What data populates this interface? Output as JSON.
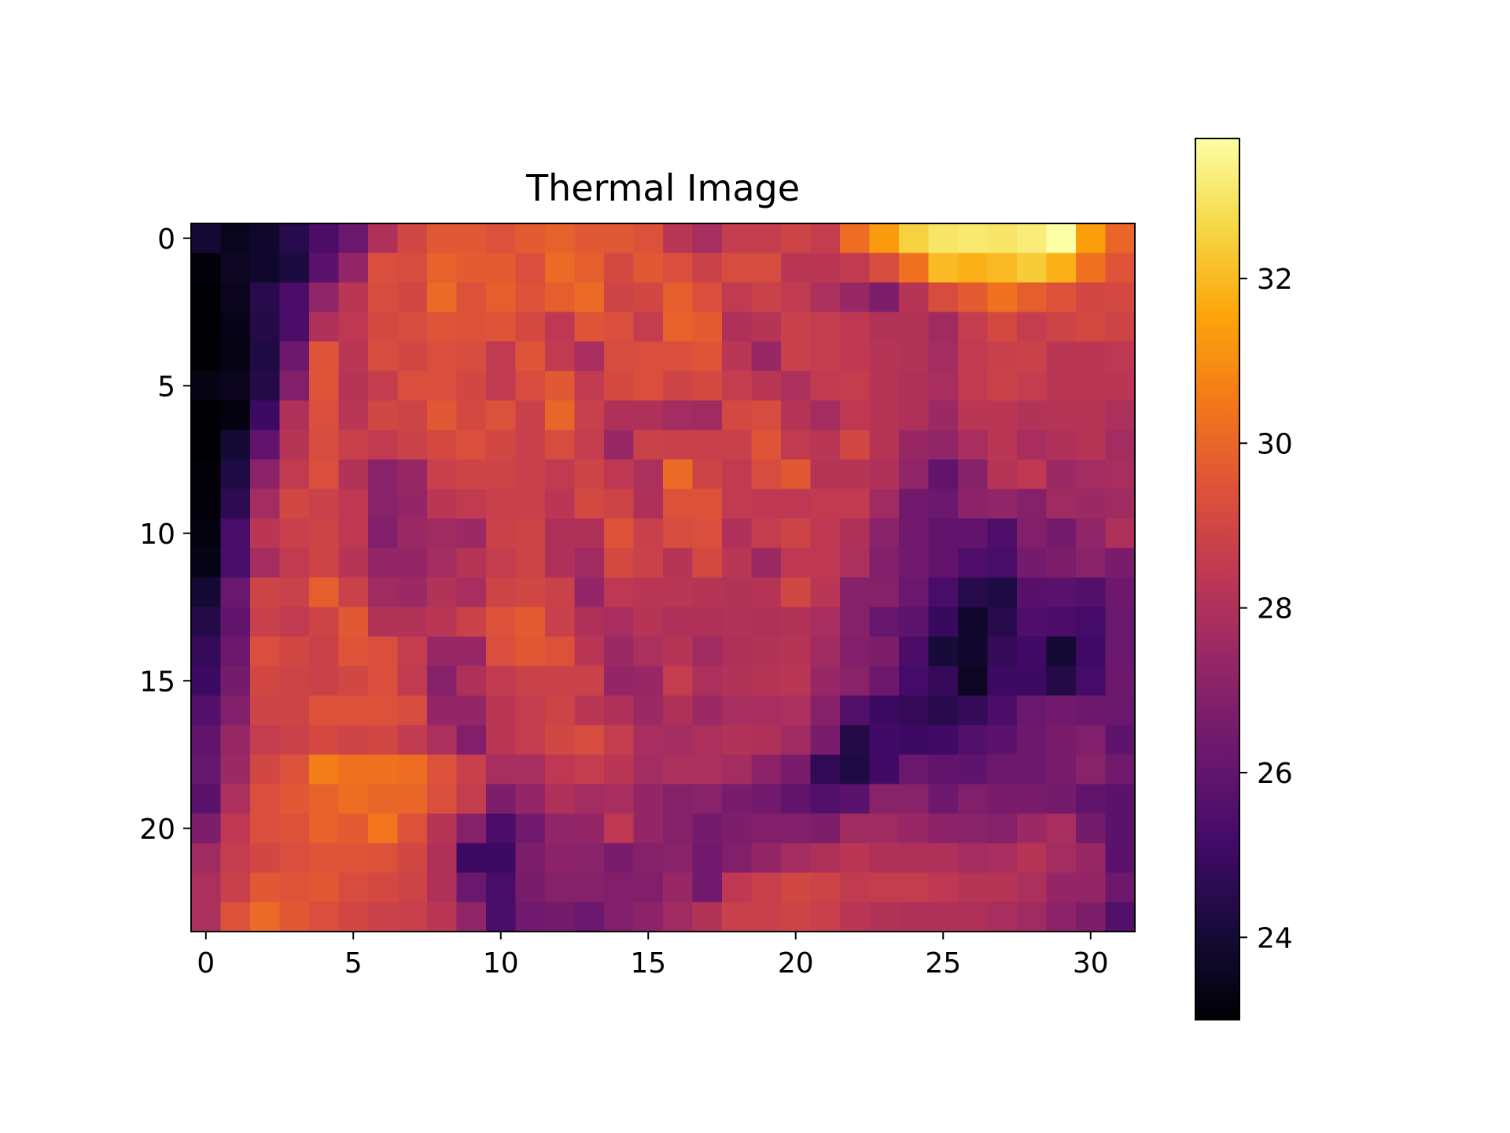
{
  "chart_data": {
    "type": "heatmap",
    "title": "Thermal Image",
    "xlabel": "",
    "ylabel": "",
    "colormap": "inferno",
    "value_range": [
      23.0,
      33.7
    ],
    "x_range": [
      -0.5,
      31.5
    ],
    "y_range": [
      -0.5,
      23.5
    ],
    "y_axis_inverted": true,
    "grid": false,
    "x_ticks": [
      0,
      5,
      10,
      15,
      20,
      25,
      30
    ],
    "y_ticks": [
      0,
      5,
      10,
      15,
      20
    ],
    "colorbar_ticks": [
      24,
      26,
      28,
      30,
      32
    ],
    "colorbar_placement": "right",
    "rows": 24,
    "cols": 32,
    "values": [
      [
        24.0,
        23.5,
        23.8,
        24.5,
        25.4,
        26.2,
        28.0,
        29.0,
        29.6,
        29.6,
        29.4,
        29.7,
        29.9,
        29.6,
        29.6,
        29.4,
        28.3,
        27.8,
        28.6,
        28.6,
        28.9,
        28.6,
        30.2,
        31.3,
        32.5,
        33.0,
        33.1,
        33.0,
        33.2,
        33.7,
        31.4,
        30.0
      ],
      [
        23.1,
        23.6,
        23.8,
        24.2,
        25.8,
        27.3,
        29.3,
        29.2,
        29.9,
        29.7,
        29.7,
        29.3,
        30.1,
        29.8,
        29.1,
        29.6,
        29.3,
        28.8,
        29.2,
        29.2,
        28.3,
        28.3,
        28.5,
        29.2,
        30.3,
        32.0,
        31.8,
        32.0,
        32.4,
        31.8,
        30.3,
        29.5
      ],
      [
        23.0,
        23.5,
        24.5,
        25.4,
        27.2,
        28.3,
        29.2,
        29.0,
        30.1,
        29.4,
        29.8,
        29.4,
        29.8,
        30.1,
        28.9,
        29.0,
        29.8,
        29.3,
        28.5,
        28.8,
        28.5,
        27.9,
        27.4,
        26.7,
        28.2,
        29.2,
        29.7,
        30.3,
        29.8,
        29.4,
        29.0,
        29.1
      ],
      [
        23.0,
        23.4,
        24.4,
        25.4,
        28.0,
        28.4,
        29.1,
        29.2,
        29.5,
        29.4,
        29.5,
        29.1,
        28.4,
        29.5,
        29.3,
        28.6,
        29.9,
        29.7,
        28.0,
        28.2,
        28.7,
        28.6,
        28.4,
        28.1,
        28.1,
        27.6,
        28.6,
        29.1,
        28.6,
        28.9,
        29.1,
        28.9
      ],
      [
        23.0,
        23.3,
        24.3,
        26.3,
        29.5,
        28.3,
        29.2,
        29.0,
        29.3,
        29.2,
        28.5,
        29.5,
        28.5,
        27.8,
        29.2,
        29.3,
        29.3,
        29.5,
        28.3,
        27.4,
        28.7,
        28.6,
        28.4,
        28.2,
        28.1,
        27.7,
        28.5,
        28.7,
        28.8,
        28.3,
        28.3,
        28.4
      ],
      [
        23.3,
        23.5,
        24.4,
        26.8,
        29.5,
        28.2,
        28.6,
        29.3,
        29.3,
        29.0,
        28.5,
        29.2,
        29.6,
        28.5,
        29.1,
        29.3,
        28.9,
        29.1,
        28.6,
        28.3,
        27.9,
        28.5,
        28.6,
        28.2,
        28.0,
        27.8,
        28.5,
        28.8,
        28.6,
        28.3,
        28.3,
        28.3
      ],
      [
        23.0,
        23.2,
        25.0,
        28.0,
        29.3,
        28.3,
        29.0,
        28.9,
        29.6,
        29.1,
        29.4,
        28.7,
        30.0,
        28.7,
        28.0,
        28.0,
        27.7,
        27.6,
        29.1,
        29.2,
        28.2,
        27.7,
        28.4,
        28.2,
        28.0,
        27.5,
        28.3,
        28.3,
        28.1,
        28.2,
        28.2,
        27.9
      ],
      [
        23.0,
        24.0,
        26.0,
        28.2,
        29.2,
        28.7,
        28.5,
        28.8,
        29.1,
        29.3,
        29.0,
        28.7,
        29.2,
        28.6,
        27.4,
        28.8,
        28.7,
        28.7,
        28.7,
        29.5,
        28.5,
        28.3,
        29.0,
        28.2,
        27.4,
        27.2,
        27.8,
        28.3,
        27.8,
        28.0,
        28.2,
        27.7
      ],
      [
        23.1,
        24.3,
        27.1,
        28.5,
        29.3,
        28.1,
        27.0,
        27.4,
        28.7,
        28.9,
        28.9,
        28.7,
        28.5,
        28.9,
        28.4,
        27.9,
        30.1,
        28.9,
        28.5,
        29.2,
        29.6,
        28.2,
        28.2,
        28.0,
        27.2,
        26.0,
        26.9,
        28.2,
        28.4,
        27.5,
        27.7,
        27.8
      ],
      [
        23.1,
        24.6,
        27.7,
        29.0,
        28.8,
        28.4,
        27.0,
        27.3,
        28.3,
        28.5,
        28.7,
        28.7,
        28.3,
        29.1,
        28.9,
        28.0,
        29.4,
        29.4,
        28.5,
        28.4,
        28.4,
        28.5,
        28.5,
        27.6,
        26.4,
        26.2,
        27.1,
        27.2,
        26.9,
        27.6,
        27.5,
        27.6
      ],
      [
        23.2,
        25.3,
        28.3,
        28.7,
        28.9,
        28.4,
        26.8,
        27.5,
        27.6,
        27.5,
        28.8,
        28.9,
        28.0,
        28.0,
        29.4,
        28.7,
        29.2,
        29.3,
        28.0,
        28.6,
        28.9,
        28.4,
        28.0,
        27.0,
        26.4,
        26.0,
        26.0,
        25.5,
        26.8,
        26.5,
        27.2,
        28.0
      ],
      [
        23.4,
        25.3,
        27.7,
        28.5,
        28.9,
        28.2,
        27.3,
        27.3,
        27.7,
        28.2,
        28.6,
        28.9,
        28.0,
        27.6,
        29.1,
        28.8,
        28.2,
        29.1,
        28.3,
        27.5,
        28.4,
        28.4,
        27.9,
        26.8,
        26.4,
        26.0,
        25.5,
        25.3,
        26.5,
        26.7,
        27.0,
        26.6
      ],
      [
        24.0,
        26.2,
        28.9,
        28.8,
        29.8,
        28.8,
        27.6,
        27.5,
        28.1,
        27.8,
        28.9,
        29.0,
        28.8,
        27.3,
        28.4,
        28.3,
        28.3,
        28.2,
        28.1,
        28.2,
        29.0,
        28.3,
        26.9,
        26.9,
        26.2,
        25.3,
        24.5,
        24.3,
        25.7,
        25.8,
        25.6,
        26.3
      ],
      [
        24.4,
        26.0,
        28.7,
        28.5,
        28.9,
        29.6,
        28.1,
        28.1,
        28.3,
        28.8,
        29.4,
        29.7,
        28.7,
        28.0,
        27.8,
        28.2,
        28.0,
        28.0,
        28.1,
        28.0,
        28.1,
        27.8,
        26.9,
        26.1,
        25.9,
        24.9,
        23.8,
        24.5,
        25.5,
        25.4,
        25.2,
        26.2
      ],
      [
        24.8,
        26.3,
        29.3,
        29.0,
        28.8,
        29.5,
        29.3,
        28.6,
        27.4,
        27.4,
        29.3,
        29.6,
        29.4,
        28.3,
        27.5,
        27.9,
        28.2,
        27.6,
        28.0,
        28.1,
        28.2,
        27.6,
        26.8,
        26.7,
        25.4,
        24.1,
        23.8,
        24.8,
        25.1,
        24.0,
        25.1,
        26.2
      ],
      [
        25.0,
        26.5,
        29.0,
        28.9,
        28.8,
        29.0,
        29.3,
        28.5,
        26.9,
        28.0,
        28.5,
        28.8,
        28.8,
        28.8,
        27.3,
        27.4,
        28.6,
        27.9,
        28.1,
        28.2,
        28.3,
        27.4,
        27.0,
        26.3,
        25.2,
        24.8,
        23.6,
        25.0,
        25.0,
        24.4,
        25.2,
        26.3
      ],
      [
        25.6,
        26.8,
        28.9,
        28.9,
        29.4,
        29.4,
        29.4,
        29.2,
        27.3,
        27.3,
        28.3,
        28.6,
        28.9,
        28.3,
        28.0,
        27.5,
        28.0,
        27.5,
        27.8,
        27.8,
        27.9,
        26.9,
        25.6,
        25.0,
        24.8,
        24.5,
        24.8,
        25.4,
        26.2,
        26.4,
        26.3,
        26.2
      ],
      [
        26.0,
        27.4,
        28.6,
        28.8,
        29.1,
        28.9,
        29.0,
        28.5,
        27.9,
        26.8,
        28.3,
        28.6,
        29.0,
        29.2,
        28.6,
        27.8,
        27.7,
        27.9,
        28.1,
        28.0,
        27.6,
        26.6,
        24.4,
        25.1,
        25.0,
        25.1,
        25.6,
        25.8,
        26.3,
        26.6,
        26.8,
        25.9
      ],
      [
        26.1,
        27.5,
        29.0,
        29.4,
        30.6,
        30.3,
        30.3,
        30.2,
        29.4,
        28.7,
        27.8,
        27.8,
        28.4,
        28.6,
        28.3,
        27.7,
        27.9,
        27.9,
        27.7,
        27.1,
        26.6,
        24.7,
        24.3,
        25.1,
        26.2,
        26.0,
        25.9,
        26.3,
        26.3,
        26.6,
        27.0,
        26.4
      ],
      [
        25.8,
        27.9,
        29.3,
        29.6,
        29.9,
        30.2,
        30.0,
        30.0,
        29.3,
        28.6,
        26.7,
        27.3,
        28.0,
        27.7,
        27.8,
        27.3,
        26.9,
        27.0,
        26.6,
        26.4,
        26.0,
        25.6,
        25.8,
        27.0,
        27.0,
        26.3,
        26.8,
        26.6,
        26.6,
        26.5,
        26.0,
        25.8
      ],
      [
        26.7,
        28.4,
        29.3,
        29.4,
        29.9,
        29.7,
        30.4,
        29.4,
        28.2,
        26.9,
        25.4,
        26.4,
        27.2,
        27.3,
        28.4,
        27.3,
        26.9,
        26.5,
        26.7,
        26.8,
        26.8,
        26.7,
        27.6,
        27.6,
        27.4,
        27.1,
        27.0,
        26.9,
        27.5,
        27.8,
        26.5,
        25.8
      ],
      [
        27.6,
        28.6,
        29.0,
        29.3,
        29.5,
        29.5,
        29.4,
        29.0,
        28.0,
        25.0,
        25.0,
        26.7,
        27.1,
        27.0,
        26.6,
        26.9,
        27.0,
        26.4,
        26.8,
        27.3,
        27.7,
        28.0,
        28.3,
        28.0,
        28.0,
        28.0,
        27.7,
        27.8,
        28.2,
        27.7,
        27.4,
        25.8
      ],
      [
        27.9,
        28.7,
        29.6,
        29.5,
        29.6,
        29.2,
        29.1,
        28.9,
        28.0,
        26.2,
        25.3,
        26.6,
        26.9,
        26.9,
        26.8,
        26.8,
        27.4,
        26.4,
        28.4,
        28.7,
        29.0,
        28.9,
        28.5,
        28.6,
        28.6,
        28.4,
        28.2,
        28.2,
        27.9,
        27.3,
        27.3,
        26.3
      ],
      [
        27.9,
        29.4,
        30.1,
        29.6,
        29.3,
        29.0,
        28.8,
        28.7,
        28.3,
        27.2,
        25.3,
        26.4,
        26.5,
        26.2,
        26.8,
        27.1,
        27.6,
        28.1,
        28.7,
        28.7,
        28.9,
        28.7,
        28.3,
        28.1,
        28.0,
        28.0,
        28.0,
        27.8,
        27.6,
        27.1,
        26.7,
        25.6
      ]
    ]
  }
}
